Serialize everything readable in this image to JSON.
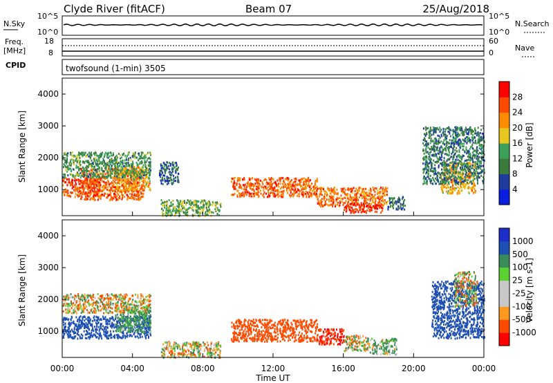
{
  "header": {
    "station": "Clyde River (fitACF)",
    "beam": "Beam 07",
    "date": "25/Aug/2018"
  },
  "sky_panel": {
    "left_label": "N.Sky",
    "left_ticks": [
      "10^5",
      "10^0"
    ],
    "right_ticks": [
      "10^5",
      "10^0"
    ],
    "right_label": "N.Search"
  },
  "freq_panel": {
    "left_label_1": "Freq.",
    "left_label_2": "[MHz]",
    "left_ticks": [
      "18",
      "8"
    ],
    "right_ticks": [
      "60",
      "0"
    ],
    "right_label": "Nave"
  },
  "cpid": {
    "label": "CPID",
    "value": "twofsound (1-min) 3505"
  },
  "colors": {
    "power": [
      "#0a1ee0",
      "#1e3c9e",
      "#3c7a3c",
      "#3ca05a",
      "#e6c81e",
      "#ff8c00",
      "#ff4b00",
      "#ff0000"
    ],
    "velocity": [
      "#ff0000",
      "#ff4b00",
      "#ff9a1e",
      "#c8c8c8",
      "#c8c8c8",
      "#5ad232",
      "#3c8c5a",
      "#1e50b4",
      "#1e2ec8"
    ]
  },
  "chart_data": [
    {
      "type": "heatmap",
      "name": "power",
      "ylabel": "Slant Range [km]",
      "y_ticks": [
        "4000",
        "3000",
        "2000",
        "1000"
      ],
      "ylim": [
        180,
        4500
      ],
      "x_ticks": [
        "00:00",
        "04:00",
        "08:00",
        "12:00",
        "16:00",
        "20:00",
        "00:00"
      ],
      "colorbar_label": "Power [dB]",
      "colorbar_ticks": [
        "28",
        "24",
        "20",
        "16",
        "12",
        "8",
        "4"
      ],
      "regions": [
        {
          "t": [
            0.0,
            2.2
          ],
          "r": [
            800,
            1400
          ],
          "v": 26
        },
        {
          "t": [
            1.0,
            4.6
          ],
          "r": [
            700,
            1700
          ],
          "v": 25
        },
        {
          "t": [
            3.0,
            5.0
          ],
          "r": [
            1000,
            1800
          ],
          "v": 20
        },
        {
          "t": [
            0.0,
            5.0
          ],
          "r": [
            1400,
            2200
          ],
          "v": 12
        },
        {
          "t": [
            5.5,
            6.6
          ],
          "r": [
            1200,
            1900
          ],
          "v": 8
        },
        {
          "t": [
            5.6,
            9.0
          ],
          "r": [
            200,
            700
          ],
          "v": 14
        },
        {
          "t": [
            9.6,
            14.5
          ],
          "r": [
            800,
            1400
          ],
          "v": 25
        },
        {
          "t": [
            14.5,
            18.5
          ],
          "r": [
            500,
            1100
          ],
          "v": 24
        },
        {
          "t": [
            16.0,
            18.2
          ],
          "r": [
            300,
            600
          ],
          "v": 28
        },
        {
          "t": [
            18.5,
            19.5
          ],
          "r": [
            400,
            800
          ],
          "v": 8
        },
        {
          "t": [
            21.5,
            23.5
          ],
          "r": [
            900,
            1900
          ],
          "v": 20
        },
        {
          "t": [
            20.5,
            24.0
          ],
          "r": [
            1200,
            3000
          ],
          "v": 10
        }
      ]
    },
    {
      "type": "heatmap",
      "name": "velocity",
      "ylabel": "Slant Range [km]",
      "y_ticks": [
        "4000",
        "3000",
        "2000",
        "1000"
      ],
      "ylim": [
        180,
        4500
      ],
      "x_ticks": [
        "00:00",
        "04:00",
        "08:00",
        "12:00",
        "16:00",
        "20:00",
        "00:00"
      ],
      "xlabel": "Time UT",
      "colorbar_label": "Velocity [m s-1]",
      "colorbar_ticks": [
        "1000",
        "500",
        "100",
        "25",
        "-25",
        "-100",
        "-500",
        "-1000"
      ],
      "regions": [
        {
          "t": [
            0.0,
            5.0
          ],
          "r": [
            800,
            1500
          ],
          "v": 700
        },
        {
          "t": [
            3.0,
            5.0
          ],
          "r": [
            1000,
            1800
          ],
          "v": 200
        },
        {
          "t": [
            0.0,
            5.0
          ],
          "r": [
            1600,
            2200
          ],
          "v": 0
        },
        {
          "t": [
            5.6,
            9.0
          ],
          "r": [
            200,
            700
          ],
          "v": 0
        },
        {
          "t": [
            9.6,
            14.5
          ],
          "r": [
            700,
            1400
          ],
          "v": -300
        },
        {
          "t": [
            14.5,
            16.0
          ],
          "r": [
            600,
            1100
          ],
          "v": -500
        },
        {
          "t": [
            16.0,
            17.5
          ],
          "r": [
            400,
            900
          ],
          "v": 0
        },
        {
          "t": [
            17.5,
            19.0
          ],
          "r": [
            300,
            800
          ],
          "v": 150
        },
        {
          "t": [
            21.0,
            24.0
          ],
          "r": [
            800,
            2600
          ],
          "v": 700
        },
        {
          "t": [
            22.3,
            23.6
          ],
          "r": [
            1800,
            2900
          ],
          "v": 0
        }
      ]
    }
  ]
}
